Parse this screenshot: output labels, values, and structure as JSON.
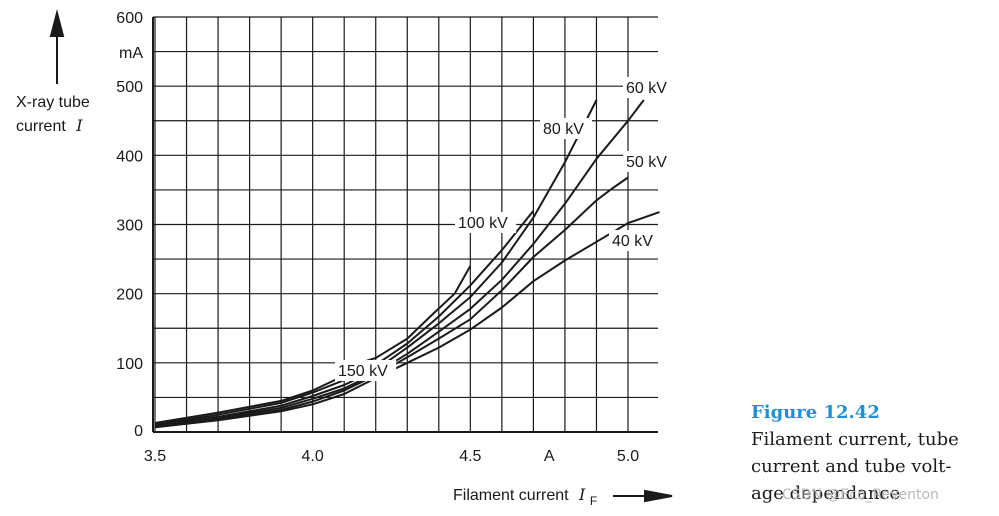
{
  "chart_data": {
    "type": "line",
    "xlabel": "Filament current",
    "xlabel_symbol": "I",
    "xlabel_subscript": "F",
    "ylabel_line1": "X-ray tube",
    "ylabel_line2": "current",
    "ylabel_symbol": "I",
    "xlim": [
      3.5,
      5.1
    ],
    "ylim": [
      0,
      600
    ],
    "x_unit": "A",
    "y_unit": "mA",
    "x_ticks": [
      "3.5",
      "4.0",
      "4.5",
      "5.0"
    ],
    "y_ticks": [
      "0",
      "100",
      "200",
      "300",
      "400",
      "500",
      "600"
    ],
    "grid": true,
    "series": [
      {
        "name": "40 kV",
        "x": [
          3.5,
          3.7,
          3.9,
          4.0,
          4.1,
          4.2,
          4.3,
          4.4,
          4.5,
          4.6,
          4.7,
          4.8,
          4.9,
          5.0,
          5.1
        ],
        "y": [
          7,
          17,
          30,
          40,
          55,
          78,
          100,
          122,
          148,
          180,
          218,
          248,
          275,
          302,
          318
        ]
      },
      {
        "name": "50 kV",
        "x": [
          3.5,
          3.7,
          3.9,
          4.0,
          4.1,
          4.2,
          4.3,
          4.4,
          4.5,
          4.6,
          4.7,
          4.8,
          4.9,
          4.95,
          5.0
        ],
        "y": [
          7,
          18,
          32,
          44,
          60,
          82,
          108,
          135,
          163,
          205,
          253,
          292,
          335,
          352,
          368
        ]
      },
      {
        "name": "60 kV",
        "x": [
          3.5,
          3.7,
          3.9,
          4.0,
          4.1,
          4.2,
          4.3,
          4.4,
          4.5,
          4.6,
          4.7,
          4.8,
          4.9,
          5.0,
          5.05
        ],
        "y": [
          8,
          20,
          35,
          48,
          63,
          85,
          113,
          145,
          178,
          220,
          272,
          330,
          395,
          450,
          480
        ]
      },
      {
        "name": "80 kV",
        "x": [
          3.5,
          3.7,
          3.9,
          4.0,
          4.1,
          4.2,
          4.3,
          4.4,
          4.5,
          4.6,
          4.7,
          4.8,
          4.9
        ],
        "y": [
          9,
          22,
          38,
          52,
          68,
          90,
          122,
          157,
          195,
          245,
          310,
          390,
          480
        ]
      },
      {
        "name": "100 kV",
        "x": [
          3.5,
          3.7,
          3.9,
          4.0,
          4.1,
          4.2,
          4.3,
          4.4,
          4.5,
          4.6,
          4.7
        ],
        "y": [
          11,
          25,
          42,
          57,
          75,
          97,
          128,
          167,
          212,
          263,
          320
        ]
      },
      {
        "name": "150 kV",
        "x": [
          3.5,
          3.7,
          3.9,
          4.0,
          4.07,
          4.15,
          4.2,
          4.3,
          4.38,
          4.45,
          4.5
        ],
        "y": [
          13,
          28,
          45,
          60,
          75,
          100,
          107,
          135,
          170,
          200,
          240
        ]
      }
    ]
  },
  "caption": {
    "figure_number": "Figure 12.42",
    "text": "Filament current, tube\ncurrent and tube volt-\nage dependance"
  },
  "watermark": "CSDN @Eco_Reventon"
}
